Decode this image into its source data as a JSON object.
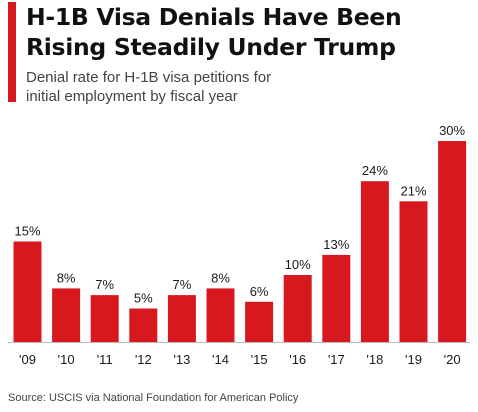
{
  "header": {
    "title_line1": "H-1B Visa Denials Have Been",
    "title_line2": "Rising Steadily Under Trump",
    "subtitle_line1": "Denial rate for H-1B visa petitions for",
    "subtitle_line2": "initial employment by fiscal year"
  },
  "footer": {
    "source": "Source: USCIS via National Foundation for American Policy"
  },
  "colors": {
    "bar": "#d7191f",
    "accent": "#d7191f",
    "text": "#1a1a1a",
    "baseline": "#bbbbbb"
  },
  "chart_data": {
    "type": "bar",
    "categories": [
      "'09",
      "'10",
      "'11",
      "'12",
      "'13",
      "'14",
      "'15",
      "'16",
      "'17",
      "'18",
      "'19",
      "'20"
    ],
    "values": [
      15,
      8,
      7,
      5,
      7,
      8,
      6,
      10,
      13,
      24,
      21,
      30
    ],
    "value_labels": [
      "15%",
      "8%",
      "7%",
      "5%",
      "7%",
      "8%",
      "6%",
      "10%",
      "13%",
      "24%",
      "21%",
      "30%"
    ],
    "title": "H-1B Visa Denials Have Been Rising Steadily Under Trump",
    "subtitle": "Denial rate for H-1B visa petitions for initial employment by fiscal year",
    "xlabel": "",
    "ylabel": "",
    "ylim": [
      0,
      30
    ],
    "grid": false,
    "legend": false
  }
}
